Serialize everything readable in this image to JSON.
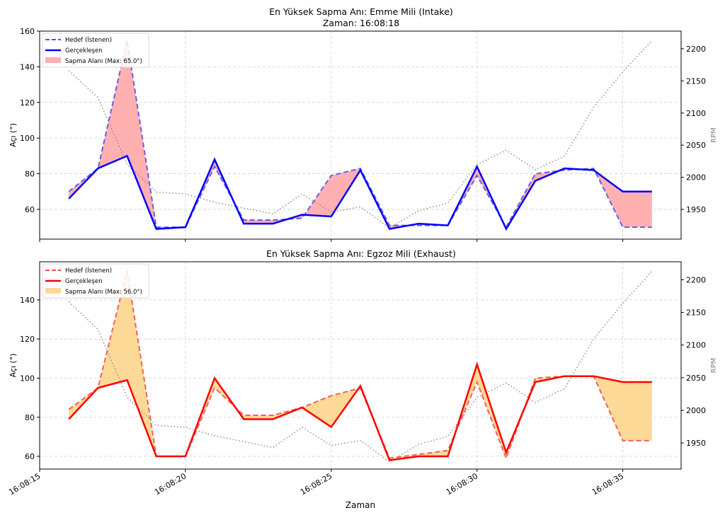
{
  "chart_data": [
    {
      "type": "line",
      "title": "En Yüksek Sapma Anı: Emme Mili (Intake)",
      "suptitle": "Zaman: 16:08:18",
      "xlabel": "Zaman",
      "ylabel": "Açı (°)",
      "y2label": "RPM",
      "x": [
        "16:08:16",
        "16:08:17",
        "16:08:18",
        "16:08:19",
        "16:08:20",
        "16:08:21",
        "16:08:22",
        "16:08:23",
        "16:08:24",
        "16:08:25",
        "16:08:26",
        "16:08:27",
        "16:08:28",
        "16:08:29",
        "16:08:30",
        "16:08:31",
        "16:08:32",
        "16:08:33",
        "16:08:34",
        "16:08:35",
        "16:08:36"
      ],
      "x_seconds": [
        16,
        17,
        18,
        19,
        20,
        21,
        22,
        23,
        24,
        25,
        26,
        27,
        28,
        29,
        30,
        31,
        32,
        33,
        34,
        35,
        36
      ],
      "xlim": [
        15,
        37
      ],
      "xticks": [
        15,
        20,
        25,
        30,
        35
      ],
      "xtick_labels": [
        "16:08:15",
        "16:08:20",
        "16:08:25",
        "16:08:30",
        "16:08:35"
      ],
      "ylim": [
        43.3,
        160
      ],
      "yticks": [
        60,
        80,
        100,
        120,
        140,
        160
      ],
      "y2lim": [
        1903.7,
        2227.5
      ],
      "y2ticks": [
        1950,
        2000,
        2050,
        2100,
        2150,
        2200
      ],
      "grid": true,
      "legend_position": "top-left",
      "series": [
        {
          "name": "Hedef (İstenen)",
          "style": "dashed",
          "color": "#5a4ff0",
          "values": [
            70,
            83,
            155,
            50,
            50,
            84,
            54,
            54,
            55,
            79,
            83,
            51,
            51,
            51,
            79,
            50,
            80,
            82,
            83,
            50,
            50
          ]
        },
        {
          "name": "Gerçekleşen",
          "style": "solid",
          "color": "#0000ff",
          "values": [
            66,
            83,
            90,
            49,
            50,
            88,
            52,
            52,
            57,
            56,
            82,
            49,
            52,
            51,
            84,
            49,
            76,
            83,
            82,
            70,
            70
          ]
        },
        {
          "name": "RPM",
          "axis": "right",
          "style": "dotted",
          "color": "#808080",
          "values": [
            2166,
            2124,
            2020,
            1977,
            1974,
            1961,
            1952,
            1943,
            1974,
            1946,
            1954,
            1921,
            1948,
            1960,
            2020,
            2042,
            2012,
            2033,
            2109,
            2164,
            2213
          ]
        }
      ],
      "fill": {
        "name": "Sapma Alanı (Max: 65.0°)",
        "color": "#ffb0b0"
      }
    },
    {
      "type": "line",
      "title": "En Yüksek Sapma Anı: Egzoz Mili (Exhaust)",
      "xlabel": "Zaman",
      "ylabel": "Açı (°)",
      "y2label": "RPM",
      "x_seconds": [
        16,
        17,
        18,
        19,
        20,
        21,
        22,
        23,
        24,
        25,
        26,
        27,
        28,
        29,
        30,
        31,
        32,
        33,
        34,
        35,
        36
      ],
      "xlim": [
        15,
        37
      ],
      "xticks": [
        15,
        20,
        25,
        30,
        35
      ],
      "xtick_labels": [
        "16:08:15",
        "16:08:20",
        "16:08:25",
        "16:08:30",
        "16:08:35"
      ],
      "ylim": [
        53.5,
        159.5
      ],
      "yticks": [
        60,
        80,
        100,
        120,
        140
      ],
      "y2lim": [
        1910,
        2227.5
      ],
      "y2ticks": [
        1950,
        2000,
        2050,
        2100,
        2150,
        2200
      ],
      "grid": true,
      "legend_position": "top-left",
      "series": [
        {
          "name": "Hedef (İstenen)",
          "style": "dashed",
          "color": "#f05050",
          "values": [
            84,
            95,
            155,
            60,
            60,
            95,
            81,
            81,
            85,
            91,
            95,
            59,
            61,
            63,
            98,
            59,
            100,
            101,
            101,
            68,
            68
          ]
        },
        {
          "name": "Gerçekleşen",
          "style": "solid",
          "color": "#ff0000",
          "values": [
            79,
            95,
            99,
            60,
            60,
            100,
            79,
            79,
            85,
            75,
            96,
            58,
            60,
            60,
            107,
            62,
            98,
            101,
            101,
            98,
            98
          ]
        },
        {
          "name": "RPM",
          "axis": "right",
          "style": "dotted",
          "color": "#808080",
          "values": [
            2166,
            2124,
            2020,
            1977,
            1974,
            1961,
            1952,
            1943,
            1974,
            1946,
            1954,
            1921,
            1948,
            1960,
            2020,
            2042,
            2012,
            2033,
            2109,
            2164,
            2213
          ]
        }
      ],
      "fill": {
        "name": "Sapma Alanı (Max: 56.0°)",
        "color": "#fdd998"
      }
    }
  ]
}
